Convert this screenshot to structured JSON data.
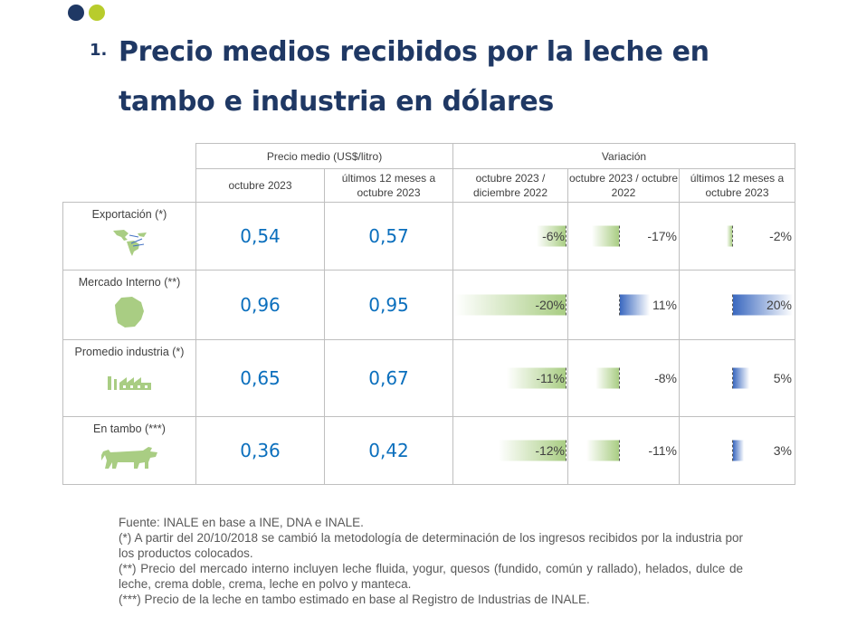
{
  "header": {
    "number": "1.",
    "title": "Precio medios recibidos por la leche en tambo e industria en dólares"
  },
  "table": {
    "group_price": "Precio medio (US$/litro)",
    "group_variation": "Variación",
    "col_price_month": "octubre 2023",
    "col_price_12m": "últimos 12 meses a octubre 2023",
    "col_var_dec": "octubre 2023 / diciembre 2022",
    "col_var_yoy": "octubre 2023 / octubre 2022",
    "col_var_12m": "últimos 12 meses a octubre 2023",
    "rows": [
      {
        "label": "Exportación (*)",
        "icon": "americas-map-icon",
        "price": "0,54",
        "price12": "0,57",
        "var_dec": "-6%",
        "var_dec_num": -6,
        "var_yoy": "-17%",
        "var_yoy_num": -17,
        "var_12m": "-2%",
        "var_12m_num": -2
      },
      {
        "label": "Mercado Interno (**)",
        "icon": "uruguay-map-icon",
        "price": "0,96",
        "price12": "0,95",
        "var_dec": "-20%",
        "var_dec_num": -20,
        "var_yoy": "11%",
        "var_yoy_num": 11,
        "var_12m": "20%",
        "var_12m_num": 20
      },
      {
        "label": "Promedio industria (*)",
        "icon": "factory-icon",
        "price": "0,65",
        "price12": "0,67",
        "var_dec": "-11%",
        "var_dec_num": -11,
        "var_yoy": "-8%",
        "var_yoy_num": -8,
        "var_12m": "5%",
        "var_12m_num": 5
      },
      {
        "label": "En tambo (***)",
        "icon": "cow-icon",
        "price": "0,36",
        "price12": "0,42",
        "var_dec": "-12%",
        "var_dec_num": -12,
        "var_yoy": "-11%",
        "var_yoy_num": -11,
        "var_12m": "3%",
        "var_12m_num": 3
      }
    ]
  },
  "notes": {
    "source": "Fuente: INALE en base a INE, DNA e INALE.",
    "note1": "(*) A partir del 20/10/2018 se cambió la metodología de determinación de los ingresos recibidos por la industria por los productos colocados.",
    "note2": "(**) Precio del mercado interno incluyen leche fluida, yogur, quesos (fundido, común y rallado), helados, dulce de leche, crema doble, crema, leche en polvo y manteca.",
    "note3": "(***) Precio de la leche en tambo estimado en base al Registro de Industrias de INALE."
  },
  "colors": {
    "title": "#1f3864",
    "value": "#0b6fbd",
    "negative_bar": "#a9cd83",
    "positive_bar": "#3a68bf"
  }
}
